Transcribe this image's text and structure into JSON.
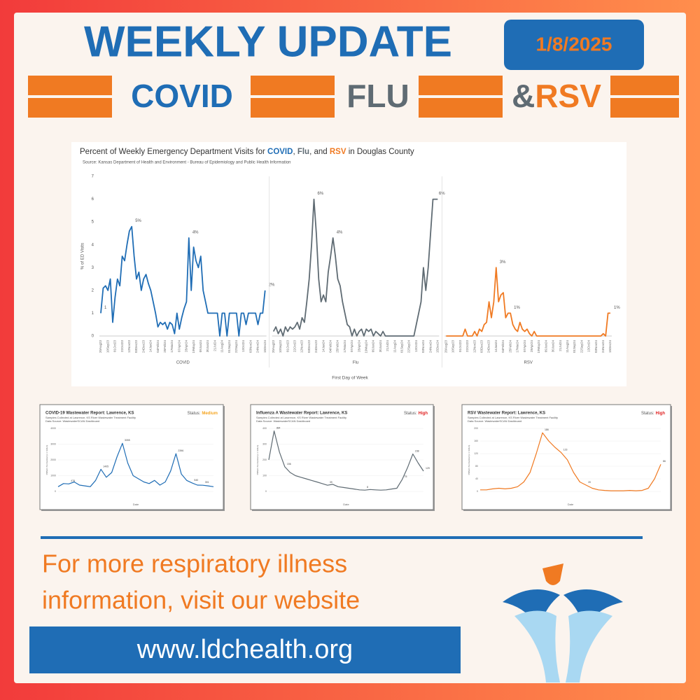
{
  "header": {
    "title": "WEEKLY UPDATE",
    "date": "1/8/2025",
    "covid": "COVID",
    "flu": "FLU",
    "and": "&",
    "rsv": "RSV"
  },
  "chart_data": [
    {
      "type": "line",
      "title": [
        "Percent of Weekly Emergency Department Visits for ",
        "COVID",
        ", ",
        "Flu",
        ", and ",
        "RSV",
        " in Douglas County"
      ],
      "subtitle": "Source: Kansas Department of Health and Environment - Bureau of Epidemiology and Public Health Information",
      "y_label": "% of ED Visits",
      "x_label": "First Day of Week",
      "ylim": [
        0,
        7
      ],
      "yticks": [
        0,
        1,
        2,
        3,
        4,
        5,
        6,
        7
      ],
      "grid": false,
      "categories": [
        "20Aug23",
        null,
        null,
        "10Sep23",
        null,
        null,
        "01Oct23",
        null,
        null,
        "22Oct23",
        null,
        null,
        "12Nov23",
        null,
        null,
        "03Dec23",
        null,
        null,
        "24Dec23",
        null,
        null,
        "14Jan24",
        null,
        null,
        "04Feb24",
        null,
        null,
        "25Feb24",
        null,
        null,
        "17Mar24",
        null,
        null,
        "07Apr24",
        null,
        null,
        "28Apr24",
        null,
        null,
        "19May24",
        null,
        null,
        "09Jun24",
        null,
        null,
        "30Jun24",
        null,
        null,
        "21Jul24",
        null,
        null,
        "11Aug24",
        null,
        null,
        "01Sep24",
        null,
        null,
        "22Sep24",
        null,
        null,
        "13Oct24",
        null,
        null,
        "03Nov24",
        null,
        null,
        "24Nov24",
        null,
        null,
        "15Dec24"
      ],
      "series": [
        {
          "name": "COVID",
          "color": "#1f6db5",
          "values": [
            1,
            2.1,
            2.2,
            2,
            2.5,
            0.6,
            1.7,
            2.5,
            2.2,
            3.5,
            3.3,
            4,
            4.6,
            4.8,
            3.5,
            2.5,
            2.8,
            2,
            2.5,
            2.7,
            2.3,
            2,
            1.5,
            1,
            0.4,
            0.6,
            0.5,
            0.6,
            0.3,
            0.6,
            0.5,
            0.1,
            1,
            0.3,
            0.8,
            1.2,
            1.5,
            4.3,
            2,
            3.9,
            3.3,
            3,
            3.5,
            2,
            1.5,
            1,
            1,
            1,
            1,
            1,
            0,
            1,
            1,
            0,
            1,
            1,
            1,
            1,
            0,
            1,
            1,
            0.5,
            1,
            1,
            1,
            1,
            0.5,
            1,
            1,
            2
          ],
          "value_labels": [
            "1",
            null,
            null,
            null,
            null,
            null,
            null,
            null,
            null,
            null,
            null,
            null,
            null,
            "5%",
            null,
            null,
            null,
            null,
            null,
            null,
            null,
            null,
            null,
            null,
            null,
            null,
            null,
            null,
            null,
            null,
            null,
            null,
            null,
            null,
            null,
            null,
            null,
            "4%",
            null,
            null,
            null,
            null,
            null,
            null,
            null,
            null,
            null,
            null,
            null,
            null,
            null,
            null,
            null,
            null,
            null,
            null,
            null,
            null,
            null,
            null,
            null,
            null,
            null,
            null,
            null,
            null,
            null,
            null,
            null,
            "2%"
          ]
        },
        {
          "name": "Flu",
          "color": "#5f6b73",
          "values": [
            0.2,
            0.4,
            0.1,
            0.3,
            0,
            0.4,
            0.2,
            0.4,
            0.3,
            0.4,
            0.6,
            0.3,
            0.8,
            0.6,
            1.5,
            2.5,
            4,
            6,
            4.5,
            2.5,
            1.5,
            1.8,
            1.5,
            2.8,
            3.5,
            4.3,
            3.5,
            2.5,
            2.2,
            1.5,
            1,
            0.5,
            0.4,
            0,
            0.3,
            0,
            0.2,
            0.3,
            0,
            0.3,
            0.2,
            0.3,
            0,
            0.2,
            0.1,
            0,
            0.2,
            0,
            0,
            0,
            0,
            0,
            0,
            0,
            0,
            0,
            0,
            0,
            0,
            0,
            0.5,
            1,
            1.5,
            3,
            2,
            3,
            4.5,
            6,
            6,
            6
          ],
          "value_labels": [
            null,
            null,
            null,
            null,
            null,
            null,
            null,
            null,
            null,
            null,
            null,
            null,
            null,
            null,
            null,
            null,
            null,
            "6%",
            null,
            null,
            null,
            null,
            null,
            null,
            null,
            "4%",
            null,
            null,
            null,
            null,
            null,
            null,
            null,
            null,
            null,
            null,
            null,
            null,
            null,
            null,
            null,
            null,
            null,
            null,
            null,
            null,
            null,
            null,
            null,
            null,
            null,
            null,
            null,
            null,
            null,
            null,
            null,
            null,
            null,
            null,
            null,
            null,
            null,
            null,
            null,
            null,
            null,
            null,
            "6%",
            null
          ]
        },
        {
          "name": "RSV",
          "color": "#f07a22",
          "values": [
            0,
            0,
            0,
            0,
            0,
            0,
            0,
            0,
            0.3,
            0,
            0,
            0,
            0.2,
            0,
            0.3,
            0.2,
            0.5,
            0.6,
            1.5,
            0.8,
            1.5,
            3,
            1.5,
            1.8,
            1.9,
            0.8,
            1,
            1,
            0.5,
            0.3,
            0.2,
            0.6,
            0.3,
            0.2,
            0.3,
            0.1,
            0,
            0.2,
            0,
            0,
            0,
            0,
            0,
            0,
            0,
            0,
            0,
            0,
            0,
            0,
            0,
            0,
            0,
            0,
            0,
            0,
            0,
            0,
            0,
            0,
            0,
            0,
            0,
            0,
            0,
            0,
            0.1,
            0,
            1,
            1
          ],
          "value_labels": [
            null,
            null,
            null,
            null,
            null,
            null,
            null,
            null,
            null,
            null,
            null,
            null,
            null,
            null,
            null,
            null,
            null,
            null,
            null,
            null,
            null,
            "3%",
            null,
            null,
            null,
            null,
            null,
            "1%",
            null,
            null,
            null,
            null,
            null,
            null,
            null,
            null,
            null,
            null,
            null,
            null,
            null,
            null,
            null,
            null,
            null,
            null,
            null,
            null,
            null,
            null,
            null,
            null,
            null,
            null,
            null,
            null,
            null,
            null,
            null,
            null,
            null,
            null,
            null,
            null,
            null,
            null,
            null,
            null,
            null,
            "1%"
          ]
        }
      ]
    },
    {
      "type": "line",
      "title": "COVID-19 Wastewater Report: Lawrence, KS",
      "status_label": "Status:",
      "status": "Medium",
      "status_color": "#f5a623",
      "subtitle": "Samples Collected at Lawrence, KS River Wastewater Treatment Facility",
      "source": "Data Source: WastewaterSCAN Dashboard",
      "y_label": "PMMoV Normalized (x 1 million)",
      "x_label": "Date",
      "color": "#1f6db5",
      "ylim": [
        0,
        4000
      ],
      "yticks": [
        0,
        1000,
        2000,
        3000,
        4000
      ],
      "values": [
        300,
        500,
        476,
        600,
        400,
        350,
        300,
        700,
        1405,
        900,
        1200,
        2200,
        3055,
        1800,
        1000,
        800,
        600,
        500,
        700,
        400,
        600,
        1300,
        2396,
        1100,
        700,
        540,
        400,
        391,
        350,
        300
      ],
      "value_labels": [
        null,
        null,
        "476",
        null,
        null,
        null,
        null,
        null,
        "1405",
        null,
        null,
        null,
        "3055",
        null,
        null,
        null,
        null,
        null,
        null,
        null,
        null,
        null,
        "2396",
        null,
        null,
        "540",
        null,
        "391",
        null,
        null
      ]
    },
    {
      "type": "line",
      "title": "Influenza A Wastewater Report: Lawrence, KS",
      "status_label": "Status:",
      "status": "High",
      "status_color": "#e02020",
      "subtitle": "Samples Collected at Lawrence, KS River Wastewater Treatment Facility",
      "source": "Data Source: WastewaterSCAN Dashboard",
      "y_label": "PMMoV Normalized (x 1 million)",
      "x_label": "Date",
      "color": "#5f6b73",
      "ylim": [
        0,
        400
      ],
      "yticks": [
        0,
        100,
        200,
        300,
        400
      ],
      "values": [
        200,
        384,
        250,
        156,
        120,
        100,
        90,
        80,
        70,
        60,
        50,
        39,
        45,
        30,
        25,
        20,
        15,
        10,
        8,
        12,
        10,
        8,
        10,
        15,
        20,
        75,
        150,
        238,
        180,
        129
      ],
      "value_labels": [
        null,
        "384",
        null,
        "156",
        null,
        null,
        null,
        null,
        null,
        null,
        null,
        "39",
        null,
        null,
        null,
        null,
        null,
        null,
        "8",
        null,
        null,
        null,
        null,
        null,
        null,
        "75",
        null,
        "238",
        null,
        "129"
      ]
    },
    {
      "type": "line",
      "title": "RSV Wastewater Report: Lawrence, KS",
      "status_label": "Status:",
      "status": "High",
      "status_color": "#e02020",
      "subtitle": "Samples Collected at Lawrence, KS River Wastewater Treatment Facility",
      "source": "Data Source: WastewaterSCAN Dashboard",
      "y_label": "PMMoV Normalized (x 1 million)",
      "x_label": "Date",
      "color": "#f07a22",
      "ylim": [
        0,
        200
      ],
      "yticks": [
        0,
        40,
        80,
        120,
        160,
        200
      ],
      "values": [
        5,
        5,
        8,
        10,
        8,
        10,
        15,
        30,
        60,
        120,
        186,
        160,
        140,
        123,
        100,
        60,
        30,
        20,
        10,
        5,
        3,
        2,
        2,
        2,
        3,
        2,
        3,
        10,
        40,
        86
      ],
      "value_labels": [
        null,
        null,
        null,
        null,
        null,
        null,
        null,
        null,
        null,
        null,
        "186",
        null,
        null,
        "123",
        null,
        null,
        null,
        "20",
        null,
        null,
        null,
        null,
        null,
        null,
        null,
        null,
        null,
        null,
        null,
        "86"
      ]
    }
  ],
  "footer": {
    "line1": "For more respiratory illness",
    "line2": "information, visit our website",
    "url": "www.ldchealth.org"
  }
}
